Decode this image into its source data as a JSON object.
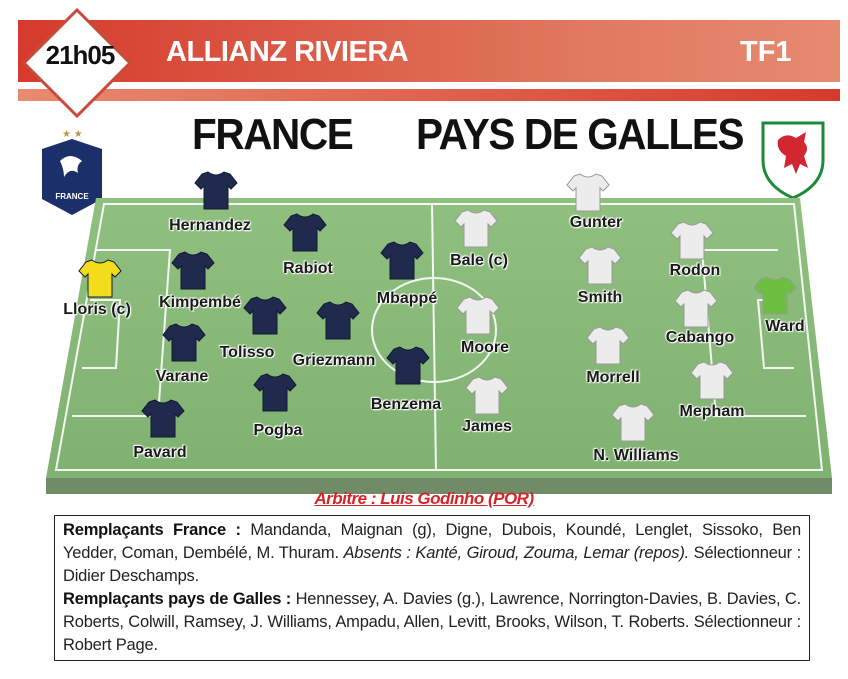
{
  "header": {
    "time": "21h05",
    "stadium": "ALLIANZ RIVIERA",
    "channel": "TF1"
  },
  "teams": {
    "home": "FRANCE",
    "away": "PAYS DE GALLES"
  },
  "colors": {
    "banner": "#d63a2c",
    "pitch": "#86b877",
    "home_shirt": "#1f2a4d",
    "away_shirt": "#ececec",
    "home_gk": "#f2dc1b",
    "away_gk": "#6cbf3f",
    "referee": "#d4252a"
  },
  "home_players": [
    "Hernandez",
    "Rabiot",
    "Mbappé",
    "Kimpembé",
    "Tolisso",
    "Griezmann",
    "Benzema",
    "Varane",
    "Pogba",
    "Pavard",
    "Lloris (c)"
  ],
  "away_players": [
    "Gunter",
    "Bale (c)",
    "Rodon",
    "Smith",
    "Moore",
    "Cabango",
    "Morrell",
    "Mepham",
    "James",
    "N. Williams",
    "Ward"
  ],
  "referee": "Arbitre : Luis Godinho (POR)",
  "subs": {
    "home_label": "Remplaçants France :",
    "home_text": " Mandanda, Maignan (g), Digne, Dubois, Koundé, Lenglet, Sissoko, Ben Yedder, Coman, Dembélé, M. Thuram. ",
    "home_absent": "Absents : Kanté, Giroud, Zouma, Lemar (repos).",
    "home_coach": " Sélectionneur : Didier Deschamps.",
    "away_label": "Remplaçants pays de Galles :",
    "away_text": " Hennessey, A. Davies (g.), Lawrence, Norrington-Davies, B. Davies, C. Roberts, Colwill, Ramsey, J. Williams, Ampadu, Allen, Levitt, Brooks, Wilson, T. Roberts. Sélectionneur : Robert Page."
  },
  "crests": {
    "home": "FRANCE FFF",
    "away": "Wales FA dragon"
  }
}
